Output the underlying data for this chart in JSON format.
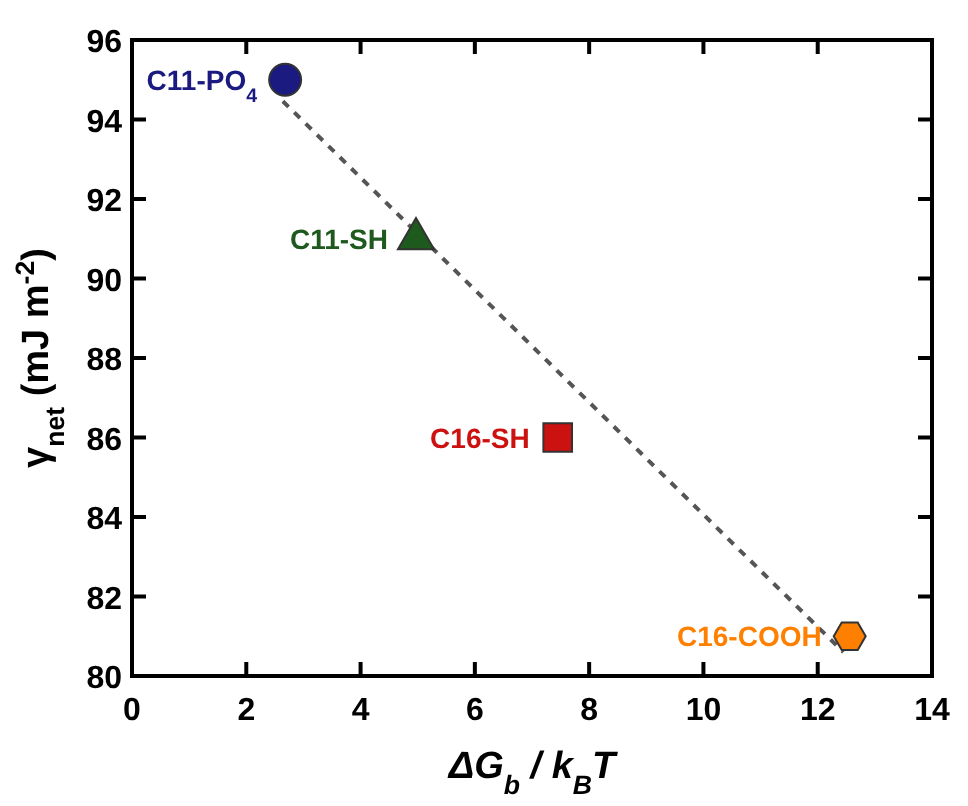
{
  "chart_data": {
    "type": "scatter",
    "xlabel": "ΔG$_{b}$ / k$_{B}$T",
    "ylabel": "γ$_{net}$ (mJ m$^{-2}$)",
    "xlim": [
      0,
      14
    ],
    "xticks": [
      0,
      2,
      4,
      6,
      8,
      10,
      12,
      14
    ],
    "ylim": [
      80,
      96
    ],
    "yticks": [
      80,
      82,
      84,
      86,
      88,
      90,
      92,
      94,
      96
    ],
    "grid": false,
    "series": [
      {
        "type": "line",
        "color": "#555555",
        "line_style": "dashed",
        "x": [
          2.64,
          12.45
        ],
        "values": [
          94.46,
          80.6
        ]
      },
      {
        "name": "C11-PO$_{4}$",
        "color": "#1a1a80",
        "marker": "circle",
        "x": [
          2.68
        ],
        "values": [
          95.0
        ]
      },
      {
        "name": "C11-SH",
        "color": "#1e5a1e",
        "marker": "triangle",
        "x": [
          4.97
        ],
        "values": [
          91.0
        ]
      },
      {
        "name": "C16-SH",
        "color": "#cc1111",
        "marker": "square",
        "x": [
          7.45
        ],
        "values": [
          86.0
        ]
      },
      {
        "name": "C16-COOH",
        "color": "#ff8000",
        "x": [
          12.56
        ],
        "values": [
          81.0
        ]
      }
    ]
  }
}
